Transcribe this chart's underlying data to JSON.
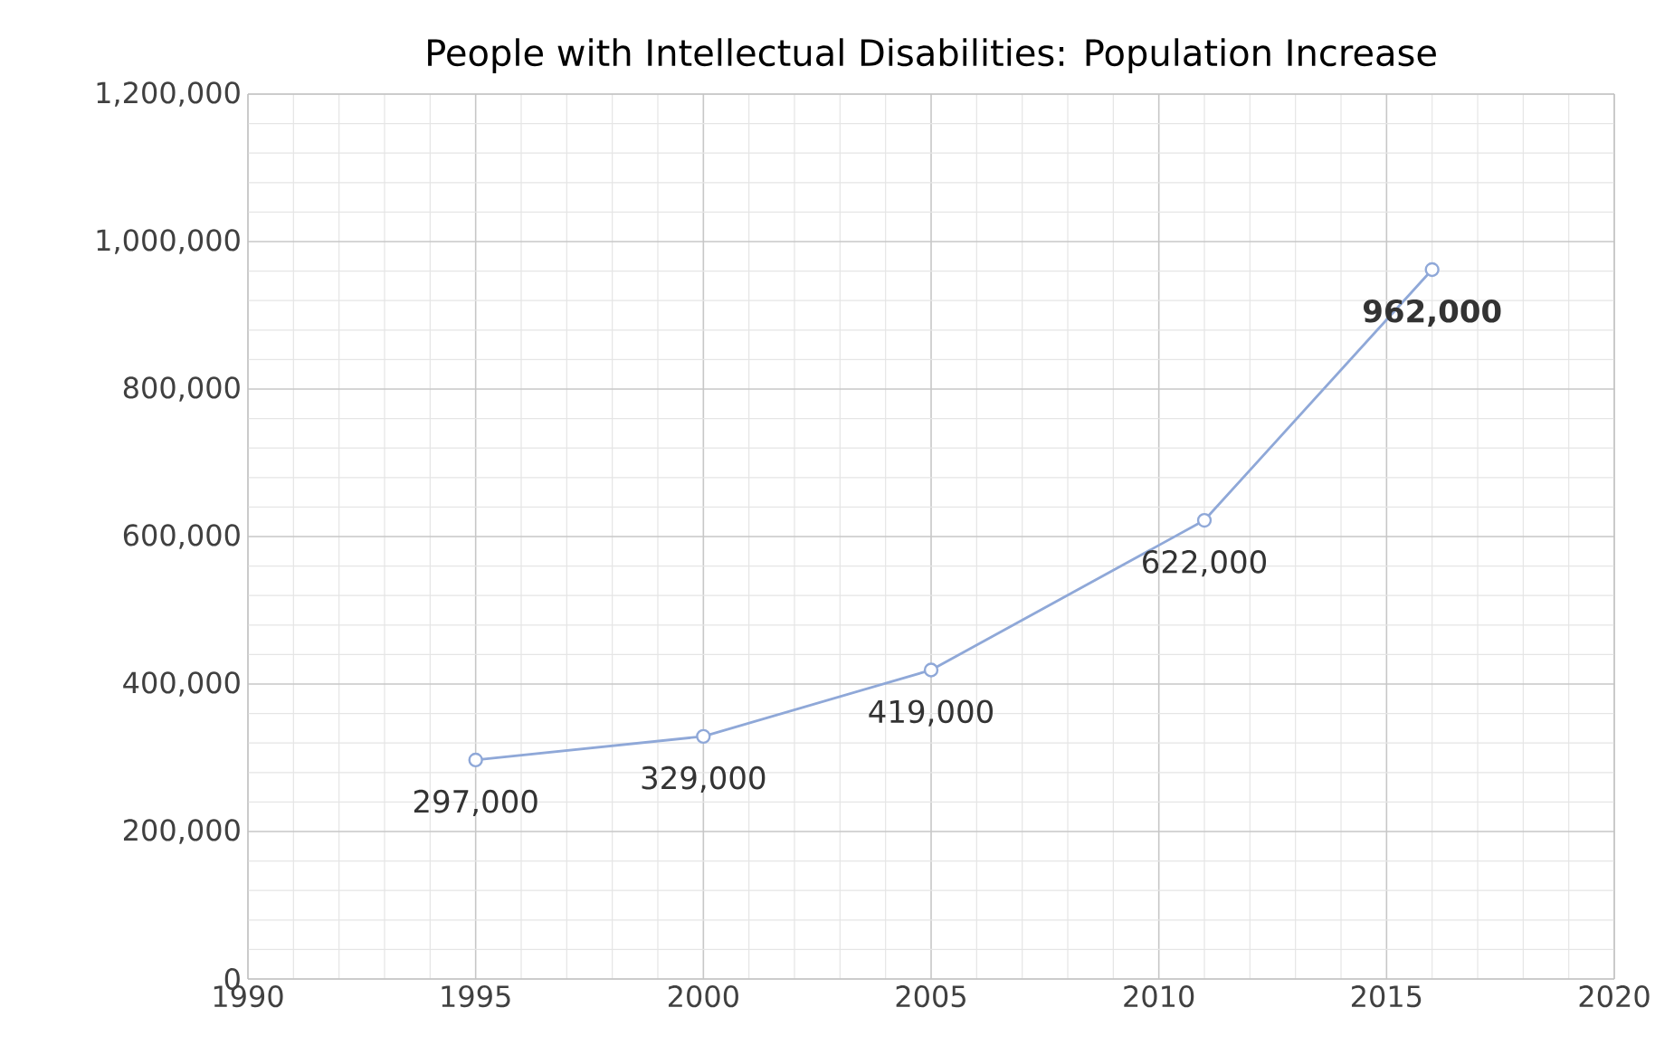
{
  "chart_data": {
    "type": "line",
    "title": "People with Intellectual Disabilities: Population Increase",
    "x": [
      1995,
      2000,
      2005,
      2011,
      2016
    ],
    "values": [
      297000,
      329000,
      419000,
      622000,
      962000
    ],
    "value_labels": [
      "297,000",
      "329,000",
      "419,000",
      "622,000",
      "**962,000**"
    ],
    "color": "#8fa8d8",
    "marker": "circle",
    "grid": true,
    "xlim": [
      1990,
      2020
    ],
    "xticks": [
      1990,
      1995,
      2000,
      2005,
      2010,
      2015,
      2020
    ],
    "ylim": [
      0,
      1200000
    ],
    "yticks": [
      0,
      {
        "value": 200000,
        "label": "200,000"
      },
      {
        "value": 400000,
        "label": "400,000"
      },
      {
        "value": 600000,
        "label": "600,000"
      },
      {
        "value": 800000,
        "label": "800,000"
      },
      {
        "value": 1000000,
        "label": "1,000,000"
      },
      {
        "value": 1200000,
        "label": "1,200,000"
      }
    ]
  }
}
